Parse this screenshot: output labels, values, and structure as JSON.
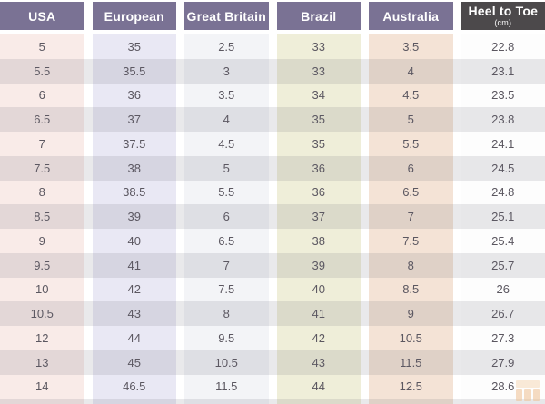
{
  "chart_data": {
    "type": "table",
    "title": "",
    "columns": [
      "USA",
      "European",
      "Great Britain",
      "Brazil",
      "Australia",
      "Heel to Toe"
    ],
    "heel_unit": "(cm)",
    "rows": [
      [
        "5",
        "35",
        "2.5",
        "33",
        "3.5",
        "22.8"
      ],
      [
        "5.5",
        "35.5",
        "3",
        "33",
        "4",
        "23.1"
      ],
      [
        "6",
        "36",
        "3.5",
        "34",
        "4.5",
        "23.5"
      ],
      [
        "6.5",
        "37",
        "4",
        "35",
        "5",
        "23.8"
      ],
      [
        "7",
        "37.5",
        "4.5",
        "35",
        "5.5",
        "24.1"
      ],
      [
        "7.5",
        "38",
        "5",
        "36",
        "6",
        "24.5"
      ],
      [
        "8",
        "38.5",
        "5.5",
        "36",
        "6.5",
        "24.8"
      ],
      [
        "8.5",
        "39",
        "6",
        "37",
        "7",
        "25.1"
      ],
      [
        "9",
        "40",
        "6.5",
        "38",
        "7.5",
        "25.4"
      ],
      [
        "9.5",
        "41",
        "7",
        "39",
        "8",
        "25.7"
      ],
      [
        "10",
        "42",
        "7.5",
        "40",
        "8.5",
        "26"
      ],
      [
        "10.5",
        "43",
        "8",
        "41",
        "9",
        "26.7"
      ],
      [
        "12",
        "44",
        "9.5",
        "42",
        "10.5",
        "27.3"
      ],
      [
        "13",
        "45",
        "10.5",
        "43",
        "11.5",
        "27.9"
      ],
      [
        "14",
        "46.5",
        "11.5",
        "44",
        "12.5",
        "28.6"
      ]
    ]
  },
  "icons": {
    "watermark": "store-watermark-icon"
  },
  "colors": {
    "page_bg": "#ffffff",
    "header_bg": "#7a7294",
    "heel_header_bg": "#4c494b",
    "header_text": "#ffffff",
    "col_usa": "#f9ebe8",
    "col_european": "#e9e8f4",
    "col_gb": "#f3f4f7",
    "col_brazil": "#efeed9",
    "col_australia": "#f4e3d6",
    "col_heel": "#fdfdfd",
    "cell_text": "#5b5760",
    "even_overlay": "rgba(98,96,115,0.14)",
    "watermark_light": "#f6d9b9",
    "watermark_dark": "#efc193"
  }
}
